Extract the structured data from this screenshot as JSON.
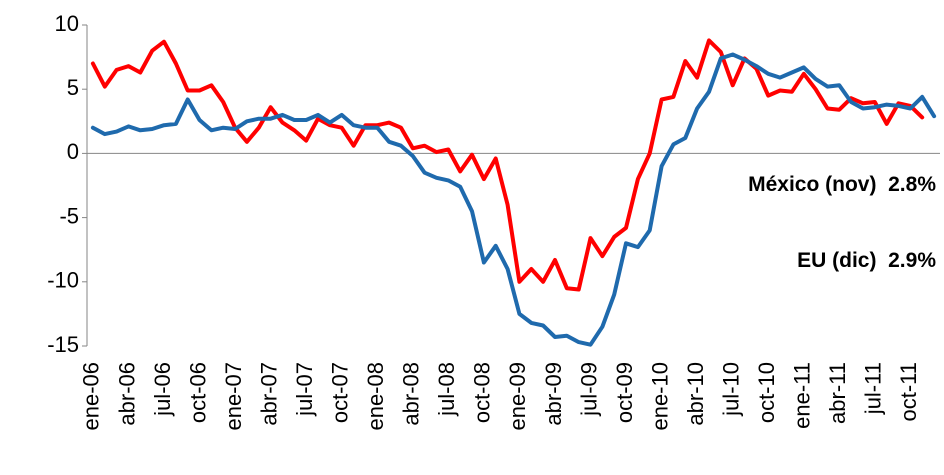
{
  "chart_data": {
    "type": "line",
    "categories": [
      "ene-06",
      null,
      null,
      "abr-06",
      null,
      null,
      "jul-06",
      null,
      null,
      "oct-06",
      null,
      null,
      "ene-07",
      null,
      null,
      "abr-07",
      null,
      null,
      "jul-07",
      null,
      null,
      "oct-07",
      null,
      null,
      "ene-08",
      null,
      null,
      "abr-08",
      null,
      null,
      "jul-08",
      null,
      null,
      "oct-08",
      null,
      null,
      "ene-09",
      null,
      null,
      "abr-09",
      null,
      null,
      "jul-09",
      null,
      null,
      "oct-09",
      null,
      null,
      "ene-10",
      null,
      null,
      "abr-10",
      null,
      null,
      "jul-10",
      null,
      null,
      "oct-10",
      null,
      null,
      "ene-11",
      null,
      null,
      "abr-11",
      null,
      null,
      "jul-11",
      null,
      null,
      "oct-11",
      null,
      null
    ],
    "series": [
      {
        "color": "#ff0000",
        "values": [
          7.0,
          5.2,
          6.5,
          6.8,
          6.3,
          8.0,
          8.7,
          7.0,
          4.9,
          4.9,
          5.3,
          4.0,
          2.0,
          0.9,
          2.0,
          3.6,
          2.4,
          1.8,
          1.0,
          2.7,
          2.2,
          2.0,
          0.6,
          2.2,
          2.2,
          2.4,
          2.0,
          0.4,
          0.6,
          0.1,
          0.3,
          -1.4,
          -0.1,
          -2.0,
          -0.4,
          -4.0,
          -10.0,
          -9.0,
          -10.0,
          -8.3,
          -10.5,
          -10.6,
          -6.6,
          -8.0,
          -6.5,
          -5.8,
          -2.0,
          0.0,
          4.2,
          4.4,
          7.2,
          5.9,
          8.8,
          7.9,
          5.3,
          7.4,
          6.6,
          4.5,
          4.9,
          4.8,
          6.2,
          5.0,
          3.5,
          3.4,
          4.3,
          3.9,
          4.0,
          2.3,
          3.9,
          3.7,
          2.8,
          null
        ]
      },
      {
        "color": "#1f6aad",
        "values": [
          2.0,
          1.5,
          1.7,
          2.1,
          1.8,
          1.9,
          2.2,
          2.3,
          4.2,
          2.6,
          1.8,
          2.0,
          1.9,
          2.5,
          2.7,
          2.7,
          3.0,
          2.6,
          2.6,
          3.0,
          2.4,
          3.0,
          2.2,
          2.0,
          2.0,
          0.9,
          0.6,
          -0.2,
          -1.5,
          -1.9,
          -2.1,
          -2.6,
          -4.5,
          -8.5,
          -7.2,
          -9.0,
          -12.5,
          -13.2,
          -13.4,
          -14.3,
          -14.2,
          -14.7,
          -14.9,
          -13.5,
          -11.0,
          -7.0,
          -7.3,
          -6.0,
          -1.0,
          0.7,
          1.2,
          3.5,
          4.8,
          7.4,
          7.7,
          7.3,
          6.8,
          6.2,
          5.9,
          6.3,
          6.7,
          5.8,
          5.2,
          5.3,
          4.0,
          3.5,
          3.6,
          3.8,
          3.7,
          3.5,
          4.4,
          2.9
        ]
      }
    ],
    "annotations": [
      {
        "text": "México (nov)  2.8%",
        "color": "#ff0000",
        "value": -2.5
      },
      {
        "text": "EU (dic)  2.9%",
        "color": "#1f6aad",
        "value": -8.4
      }
    ],
    "ylim": [
      -15,
      10
    ],
    "yticks": [
      -15,
      -10,
      -5,
      0,
      5,
      10
    ],
    "grid": false
  }
}
